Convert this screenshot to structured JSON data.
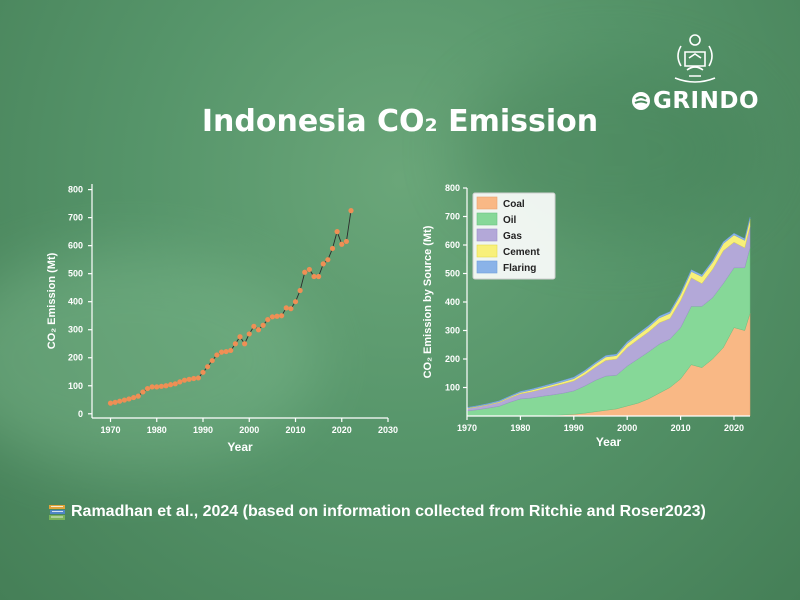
{
  "title": "Indonesia CO₂ Emission",
  "logo": {
    "brand": "GRINDO",
    "emblem_icon": "university-emblem-icon"
  },
  "footer": {
    "icon": "books-icon",
    "text": "Ramadhan et al., 2024 (based on information collected from Ritchie and Roser2023)"
  },
  "colors": {
    "points": "#ef8f55",
    "line": "#2b2b2b",
    "coal": "#f9b885",
    "oil": "#86d898",
    "gas": "#b3a8d8",
    "cement": "#f8f07a",
    "flaring": "#8ab3e8"
  },
  "chart_data": [
    {
      "type": "line",
      "xlabel": "Year",
      "ylabel": "CO₂ Emission (Mt)",
      "xlim": [
        1966,
        2030
      ],
      "ylim": [
        -15,
        820
      ],
      "xticks": [
        1970,
        1980,
        1990,
        2000,
        2010,
        2020,
        2030
      ],
      "yticks": [
        0,
        100,
        200,
        300,
        400,
        500,
        600,
        700,
        800
      ],
      "grid": false,
      "series": [
        {
          "x": [
            1970,
            1971,
            1972,
            1973,
            1974,
            1975,
            1976,
            1977,
            1978,
            1979,
            1980,
            1981,
            1982,
            1983,
            1984,
            1985,
            1986,
            1987,
            1988,
            1989,
            1990,
            1991,
            1992,
            1993,
            1994,
            1995,
            1996,
            1997,
            1998,
            1999,
            2000,
            2001,
            2002,
            2003,
            2004,
            2005,
            2006,
            2007,
            2008,
            2009,
            2010,
            2011,
            2012,
            2013,
            2014,
            2015,
            2016,
            2017,
            2018,
            2019,
            2020,
            2021,
            2022
          ],
          "values": [
            38,
            41,
            45,
            49,
            53,
            58,
            63,
            78,
            90,
            96,
            96,
            98,
            100,
            104,
            107,
            114,
            120,
            123,
            126,
            128,
            148,
            168,
            190,
            210,
            220,
            222,
            226,
            250,
            275,
            250,
            285,
            312,
            300,
            316,
            336,
            346,
            348,
            350,
            378,
            375,
            400,
            440,
            505,
            515,
            490,
            490,
            535,
            550,
            590,
            650,
            605,
            615,
            725
          ]
        }
      ]
    },
    {
      "type": "area",
      "xlabel": "Year",
      "ylabel": "CO₂ Emission by Source (Mt)",
      "xlim": [
        1970,
        2023
      ],
      "ylim": [
        0,
        800
      ],
      "xticks": [
        1970,
        1980,
        1990,
        2000,
        2010,
        2020
      ],
      "yticks": [
        100,
        200,
        300,
        400,
        500,
        600,
        700,
        800
      ],
      "legend_position": "top-left",
      "x": [
        1970,
        1972,
        1974,
        1976,
        1978,
        1980,
        1982,
        1984,
        1986,
        1988,
        1990,
        1992,
        1994,
        1996,
        1998,
        2000,
        2002,
        2004,
        2006,
        2008,
        2010,
        2012,
        2014,
        2016,
        2018,
        2020,
        2022,
        2023
      ],
      "series": [
        {
          "name": "Coal",
          "values": [
            0,
            0,
            0,
            0,
            0,
            0,
            0,
            1,
            2,
            4,
            6,
            10,
            15,
            20,
            25,
            35,
            45,
            60,
            80,
            100,
            130,
            180,
            170,
            200,
            240,
            310,
            300,
            360
          ]
        },
        {
          "name": "Oil",
          "values": [
            18,
            22,
            28,
            34,
            48,
            60,
            63,
            68,
            72,
            76,
            82,
            95,
            110,
            120,
            118,
            140,
            155,
            165,
            172,
            170,
            180,
            205,
            215,
            215,
            225,
            210,
            220,
            230
          ]
        },
        {
          "name": "Gas",
          "values": [
            8,
            10,
            11,
            13,
            16,
            18,
            22,
            25,
            30,
            33,
            35,
            40,
            46,
            55,
            57,
            65,
            68,
            70,
            75,
            72,
            95,
            100,
            80,
            100,
            115,
            90,
            70,
            75
          ]
        },
        {
          "name": "Cement",
          "values": [
            2,
            2,
            2,
            3,
            3,
            4,
            5,
            6,
            6,
            7,
            8,
            9,
            11,
            12,
            12,
            14,
            15,
            16,
            17,
            18,
            20,
            22,
            24,
            24,
            25,
            25,
            26,
            26
          ]
        },
        {
          "name": "Flaring",
          "values": [
            2,
            2,
            3,
            3,
            3,
            4,
            4,
            4,
            4,
            5,
            5,
            5,
            5,
            5,
            5,
            6,
            6,
            6,
            6,
            6,
            6,
            6,
            6,
            6,
            6,
            6,
            6,
            6
          ]
        }
      ]
    }
  ]
}
